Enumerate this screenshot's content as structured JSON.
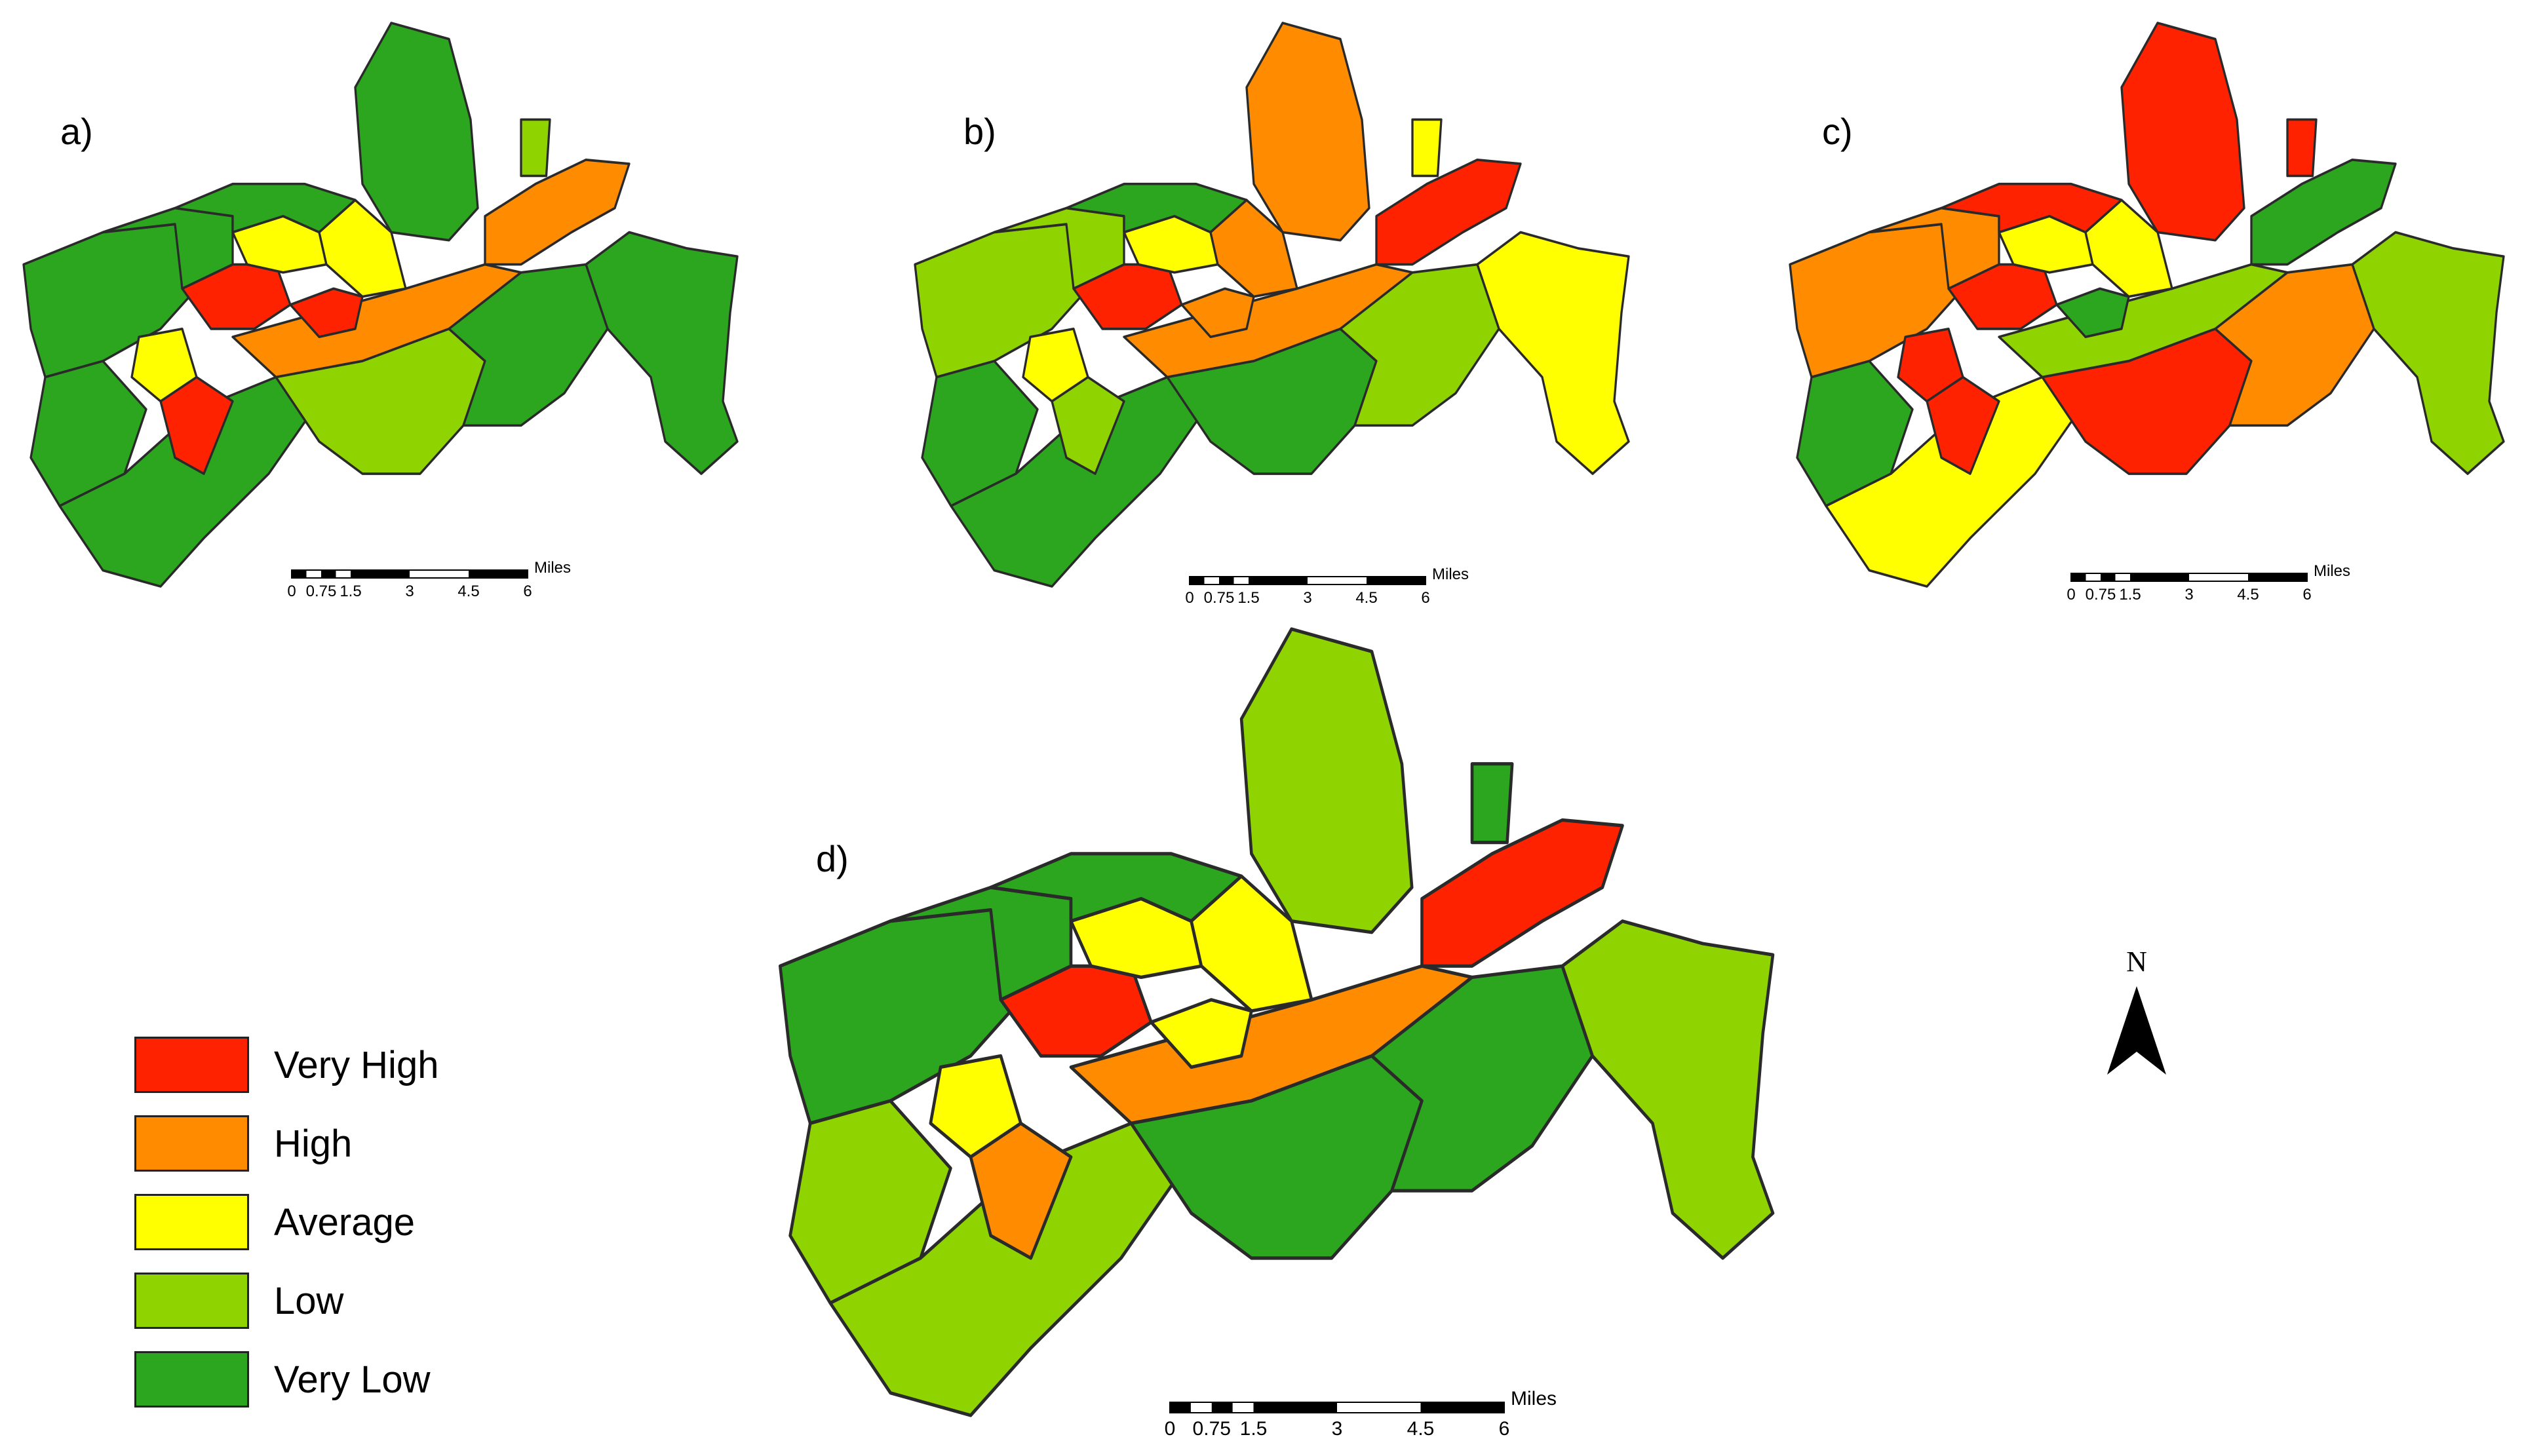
{
  "colors": {
    "very_high": "#ff2200",
    "high": "#ff8c00",
    "average": "#ffff00",
    "low": "#8fd400",
    "very_low": "#2ca51f",
    "boundary": "#2a2a2a"
  },
  "panels": [
    {
      "label": "a)",
      "dominant": "very_low"
    },
    {
      "label": "b)",
      "dominant": "low"
    },
    {
      "label": "c)",
      "dominant": "high"
    },
    {
      "label": "d)",
      "dominant": "low"
    }
  ],
  "legend": [
    {
      "label": "Very High",
      "color": "#ff2200"
    },
    {
      "label": "High",
      "color": "#ff8c00"
    },
    {
      "label": "Average",
      "color": "#ffff00"
    },
    {
      "label": "Low",
      "color": "#8fd400"
    },
    {
      "label": "Very Low",
      "color": "#2ca51f"
    }
  ],
  "scale_bar": {
    "unit": "Miles",
    "ticks": [
      "0",
      "0.75",
      "1.5",
      "3",
      "4.5",
      "6"
    ]
  },
  "north_arrow": {
    "label": "N"
  }
}
